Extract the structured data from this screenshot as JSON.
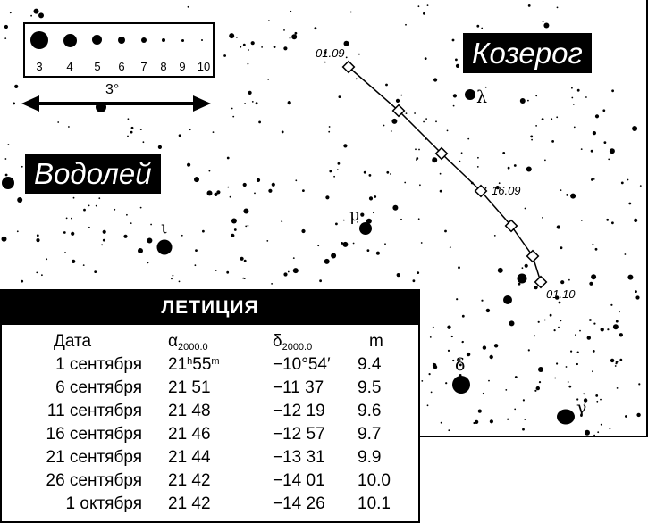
{
  "magnitude_legend": [
    "3",
    "4",
    "5",
    "6",
    "7",
    "8",
    "9",
    "10"
  ],
  "scale_bar": {
    "label": "3°",
    "degrees": 3
  },
  "constellations": {
    "aquarius": "Водолей",
    "capricornus": "Козерог"
  },
  "star_labels": {
    "lambda": "λ",
    "mu": "μ",
    "iota": "ι",
    "delta": "δ",
    "gamma": "γ"
  },
  "path_labels": {
    "start": "01.09",
    "mid": "16.09",
    "end": "01.10"
  },
  "table": {
    "title": "ЛЕТИЦИЯ",
    "headers": {
      "date": "Дата",
      "ra_symbol": "α",
      "ra_epoch": "2000.0",
      "dec_symbol": "δ",
      "dec_epoch": "2000.0",
      "mag": "m"
    },
    "rows": [
      {
        "date": "1 сентября",
        "ra_h": "21",
        "ra_h_unit": "h",
        "ra_m": "55",
        "ra_m_unit": "m",
        "dec": "−10°54′",
        "mag": "9.4"
      },
      {
        "date": "6 сентября",
        "ra": "21 51",
        "dec": "−11 37",
        "mag": "9.5"
      },
      {
        "date": "11 сентября",
        "ra": "21 48",
        "dec": "−12 19",
        "mag": "9.6"
      },
      {
        "date": "16 сентября",
        "ra": "21 46",
        "dec": "−12 57",
        "mag": "9.7"
      },
      {
        "date": "21 сентября",
        "ra": "21 44",
        "dec": "−13 31",
        "mag": "9.9"
      },
      {
        "date": "26 сентября",
        "ra": "21 42",
        "dec": "−14 01",
        "mag": "10.0"
      },
      {
        "date": "1 октября",
        "ra": "21 42",
        "dec": "−14 26",
        "mag": "10.1"
      }
    ]
  }
}
